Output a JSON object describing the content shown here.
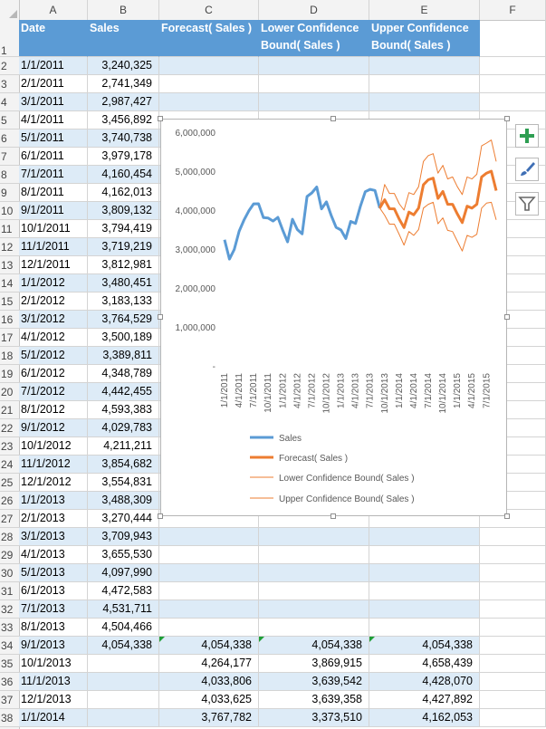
{
  "columns": [
    "A",
    "B",
    "C",
    "D",
    "E",
    "F"
  ],
  "header_row": {
    "row_num": "1",
    "date": "Date",
    "sales": "Sales",
    "forecast": "Forecast( Sales )",
    "lower": "Lower Confidence Bound( Sales )",
    "upper": "Upper Confidence Bound( Sales )"
  },
  "rows": [
    {
      "n": "2",
      "date": "1/1/2011",
      "sales": "3,240,325",
      "forecast": "",
      "lower": "",
      "upper": ""
    },
    {
      "n": "3",
      "date": "2/1/2011",
      "sales": "2,741,349",
      "forecast": "",
      "lower": "",
      "upper": ""
    },
    {
      "n": "4",
      "date": "3/1/2011",
      "sales": "2,987,427",
      "forecast": "",
      "lower": "",
      "upper": ""
    },
    {
      "n": "5",
      "date": "4/1/2011",
      "sales": "3,456,892",
      "forecast": "",
      "lower": "",
      "upper": ""
    },
    {
      "n": "6",
      "date": "5/1/2011",
      "sales": "3,740,738",
      "forecast": "",
      "lower": "",
      "upper": ""
    },
    {
      "n": "7",
      "date": "6/1/2011",
      "sales": "3,979,178",
      "forecast": "",
      "lower": "",
      "upper": ""
    },
    {
      "n": "8",
      "date": "7/1/2011",
      "sales": "4,160,454",
      "forecast": "",
      "lower": "",
      "upper": ""
    },
    {
      "n": "9",
      "date": "8/1/2011",
      "sales": "4,162,013",
      "forecast": "",
      "lower": "",
      "upper": ""
    },
    {
      "n": "10",
      "date": "9/1/2011",
      "sales": "3,809,132",
      "forecast": "",
      "lower": "",
      "upper": ""
    },
    {
      "n": "11",
      "date": "10/1/2011",
      "sales": "3,794,419",
      "forecast": "",
      "lower": "",
      "upper": ""
    },
    {
      "n": "12",
      "date": "11/1/2011",
      "sales": "3,719,219",
      "forecast": "",
      "lower": "",
      "upper": ""
    },
    {
      "n": "13",
      "date": "12/1/2011",
      "sales": "3,812,981",
      "forecast": "",
      "lower": "",
      "upper": ""
    },
    {
      "n": "14",
      "date": "1/1/2012",
      "sales": "3,480,451",
      "forecast": "",
      "lower": "",
      "upper": ""
    },
    {
      "n": "15",
      "date": "2/1/2012",
      "sales": "3,183,133",
      "forecast": "",
      "lower": "",
      "upper": ""
    },
    {
      "n": "16",
      "date": "3/1/2012",
      "sales": "3,764,529",
      "forecast": "",
      "lower": "",
      "upper": ""
    },
    {
      "n": "17",
      "date": "4/1/2012",
      "sales": "3,500,189",
      "forecast": "",
      "lower": "",
      "upper": ""
    },
    {
      "n": "18",
      "date": "5/1/2012",
      "sales": "3,389,811",
      "forecast": "",
      "lower": "",
      "upper": ""
    },
    {
      "n": "19",
      "date": "6/1/2012",
      "sales": "4,348,789",
      "forecast": "",
      "lower": "",
      "upper": ""
    },
    {
      "n": "20",
      "date": "7/1/2012",
      "sales": "4,442,455",
      "forecast": "",
      "lower": "",
      "upper": ""
    },
    {
      "n": "21",
      "date": "8/1/2012",
      "sales": "4,593,383",
      "forecast": "",
      "lower": "",
      "upper": ""
    },
    {
      "n": "22",
      "date": "9/1/2012",
      "sales": "4,029,783",
      "forecast": "",
      "lower": "",
      "upper": ""
    },
    {
      "n": "23",
      "date": "10/1/2012",
      "sales": "4,211,211",
      "forecast": "",
      "lower": "",
      "upper": ""
    },
    {
      "n": "24",
      "date": "11/1/2012",
      "sales": "3,854,682",
      "forecast": "",
      "lower": "",
      "upper": ""
    },
    {
      "n": "25",
      "date": "12/1/2012",
      "sales": "3,554,831",
      "forecast": "",
      "lower": "",
      "upper": ""
    },
    {
      "n": "26",
      "date": "1/1/2013",
      "sales": "3,488,309",
      "forecast": "",
      "lower": "",
      "upper": ""
    },
    {
      "n": "27",
      "date": "2/1/2013",
      "sales": "3,270,444",
      "forecast": "",
      "lower": "",
      "upper": ""
    },
    {
      "n": "28",
      "date": "3/1/2013",
      "sales": "3,709,943",
      "forecast": "",
      "lower": "",
      "upper": ""
    },
    {
      "n": "29",
      "date": "4/1/2013",
      "sales": "3,655,530",
      "forecast": "",
      "lower": "",
      "upper": ""
    },
    {
      "n": "30",
      "date": "5/1/2013",
      "sales": "4,097,990",
      "forecast": "",
      "lower": "",
      "upper": ""
    },
    {
      "n": "31",
      "date": "6/1/2013",
      "sales": "4,472,583",
      "forecast": "",
      "lower": "",
      "upper": ""
    },
    {
      "n": "32",
      "date": "7/1/2013",
      "sales": "4,531,711",
      "forecast": "",
      "lower": "",
      "upper": ""
    },
    {
      "n": "33",
      "date": "8/1/2013",
      "sales": "4,504,466",
      "forecast": "",
      "lower": "",
      "upper": ""
    },
    {
      "n": "34",
      "date": "9/1/2013",
      "sales": "4,054,338",
      "forecast": "4,054,338",
      "lower": "4,054,338",
      "upper": "4,054,338"
    },
    {
      "n": "35",
      "date": "10/1/2013",
      "sales": "",
      "forecast": "4,264,177",
      "lower": "3,869,915",
      "upper": "4,658,439"
    },
    {
      "n": "36",
      "date": "11/1/2013",
      "sales": "",
      "forecast": "4,033,806",
      "lower": "3,639,542",
      "upper": "4,428,070"
    },
    {
      "n": "37",
      "date": "12/1/2013",
      "sales": "",
      "forecast": "4,033,625",
      "lower": "3,639,358",
      "upper": "4,427,892"
    },
    {
      "n": "38",
      "date": "1/1/2014",
      "sales": "",
      "forecast": "3,767,782",
      "lower": "3,373,510",
      "upper": "4,162,053"
    }
  ],
  "chart_data": {
    "type": "line",
    "yticks": [
      "6,000,000",
      "5,000,000",
      "4,000,000",
      "3,000,000",
      "2,000,000",
      "1,000,000",
      "-"
    ],
    "ylim": [
      0,
      6000000
    ],
    "xticks": [
      "1/1/2011",
      "4/1/2011",
      "7/1/2011",
      "10/1/2011",
      "1/1/2012",
      "4/1/2012",
      "7/1/2012",
      "10/1/2012",
      "1/1/2013",
      "4/1/2013",
      "7/1/2013",
      "10/1/2013",
      "1/1/2014",
      "4/1/2014",
      "7/1/2014",
      "10/1/2014",
      "1/1/2015",
      "4/1/2015",
      "7/1/2015"
    ],
    "legend": [
      "Sales",
      "Forecast( Sales )",
      "Lower Confidence Bound( Sales )",
      "Upper Confidence Bound( Sales )"
    ],
    "legend_position": "bottom",
    "colors": {
      "sales": "#5b9bd5",
      "forecast": "#ed7d31",
      "bounds": "#ed7d31"
    },
    "series": [
      {
        "name": "Sales",
        "values": [
          3240325,
          2741349,
          2987427,
          3456892,
          3740738,
          3979178,
          4160454,
          4162013,
          3809132,
          3794419,
          3719219,
          3812981,
          3480451,
          3183133,
          3764529,
          3500189,
          3389811,
          4348789,
          4442455,
          4593383,
          4029783,
          4211211,
          3854682,
          3554831,
          3488309,
          3270444,
          3709943,
          3655530,
          4097990,
          4472583,
          4531711,
          4504466,
          4054338
        ]
      },
      {
        "name": "Forecast( Sales )",
        "values": [
          null,
          null,
          null,
          null,
          null,
          null,
          null,
          null,
          null,
          null,
          null,
          null,
          null,
          null,
          null,
          null,
          null,
          null,
          null,
          null,
          null,
          null,
          null,
          null,
          null,
          null,
          null,
          null,
          null,
          null,
          null,
          null,
          4054338,
          4264177,
          4033806,
          4033625,
          3767782,
          3550000,
          3950000,
          3880000,
          4050000,
          4650000,
          4780000,
          4820000,
          4300000,
          4480000,
          4150000,
          4150000,
          3900000,
          3680000,
          4100000,
          4050000,
          4150000,
          4850000,
          4950000,
          5000000,
          4500000
        ]
      },
      {
        "name": "Lower Confidence Bound( Sales )",
        "values": [
          null,
          null,
          null,
          null,
          null,
          null,
          null,
          null,
          null,
          null,
          null,
          null,
          null,
          null,
          null,
          null,
          null,
          null,
          null,
          null,
          null,
          null,
          null,
          null,
          null,
          null,
          null,
          null,
          null,
          null,
          null,
          null,
          4054338,
          3869915,
          3639542,
          3639358,
          3373510,
          3100000,
          3450000,
          3350000,
          3500000,
          4050000,
          4150000,
          4200000,
          3650000,
          3800000,
          3480000,
          3450000,
          3200000,
          2950000,
          3350000,
          3300000,
          3380000,
          4050000,
          4180000,
          4200000,
          3750000
        ]
      },
      {
        "name": "Upper Confidence Bound( Sales )",
        "values": [
          null,
          null,
          null,
          null,
          null,
          null,
          null,
          null,
          null,
          null,
          null,
          null,
          null,
          null,
          null,
          null,
          null,
          null,
          null,
          null,
          null,
          null,
          null,
          null,
          null,
          null,
          null,
          null,
          null,
          null,
          null,
          null,
          4054338,
          4658439,
          4428070,
          4427892,
          4162053,
          4000000,
          4450000,
          4400000,
          4600000,
          5250000,
          5400000,
          5450000,
          4950000,
          5150000,
          4800000,
          4850000,
          4600000,
          4400000,
          4850000,
          4800000,
          4920000,
          5650000,
          5720000,
          5800000,
          5250000
        ]
      }
    ]
  }
}
